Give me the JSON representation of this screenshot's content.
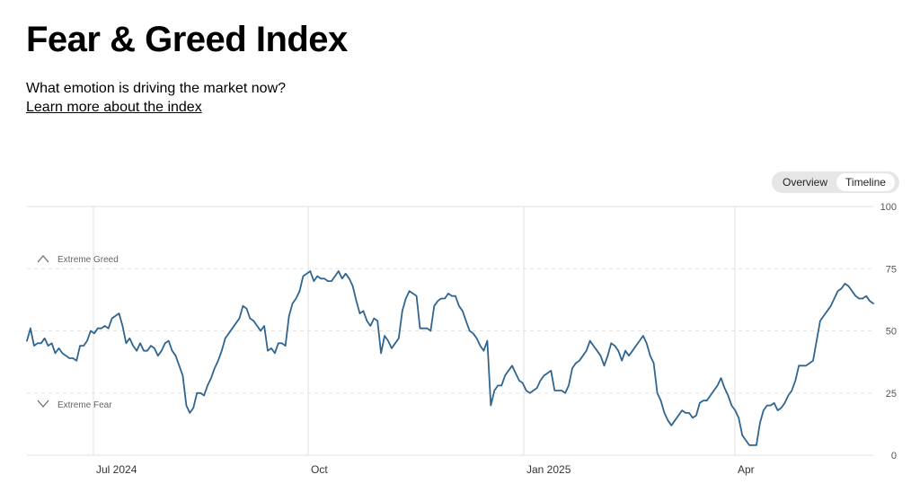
{
  "header": {
    "title": "Fear & Greed Index",
    "subtitle": "What emotion is driving the market now?",
    "learn_more": "Learn more about the index"
  },
  "toggle": {
    "overview": "Overview",
    "timeline": "Timeline",
    "selected": "Timeline"
  },
  "colors": {
    "line": "#2f6591",
    "grid": "#e0e0e0",
    "dash": "#e3e3e3"
  },
  "chart_data": {
    "type": "line",
    "y_ticks": [
      "100",
      "75",
      "50",
      "25",
      "0"
    ],
    "ylim": [
      0,
      100
    ],
    "x_ticks": [
      "Jul 2024",
      "Oct",
      "Jan 2025",
      "Apr"
    ],
    "zones": {
      "greed": {
        "label": "Extreme Greed",
        "icon": "chevron-up-icon"
      },
      "fear": {
        "label": "Extreme Fear",
        "icon": "chevron-down-icon"
      }
    },
    "grid": true,
    "series": [
      {
        "values": [
          46,
          51,
          44,
          45,
          45,
          47,
          44,
          45,
          41,
          43,
          41,
          40,
          39,
          39,
          38,
          44,
          44,
          46,
          50,
          49,
          51,
          51,
          52,
          51,
          55,
          56,
          57,
          52,
          45,
          47,
          44,
          42,
          45,
          42,
          42,
          44,
          43,
          40,
          42,
          45,
          46,
          42,
          40,
          36,
          32,
          20,
          17,
          19,
          25,
          25,
          24,
          28,
          31,
          35,
          38,
          42,
          47,
          49,
          51,
          53,
          55,
          60,
          59,
          55,
          54,
          52,
          50,
          52,
          42,
          43,
          41,
          45,
          45,
          44,
          56,
          61,
          63,
          66,
          72,
          73,
          74,
          70,
          72,
          71,
          71,
          70,
          70,
          72,
          74,
          71,
          73,
          71,
          68,
          62,
          57,
          58,
          54,
          52,
          55,
          54,
          41,
          48,
          46,
          43,
          45,
          47,
          58,
          63,
          66,
          65,
          64,
          51,
          51,
          51,
          50,
          60,
          62,
          63,
          63,
          65,
          64,
          64,
          60,
          58,
          54,
          50,
          49,
          47,
          44,
          42,
          46,
          20,
          26,
          28,
          28,
          32,
          34,
          36,
          33,
          30,
          29,
          26,
          25,
          26,
          27,
          30,
          32,
          33,
          34,
          26,
          26,
          26,
          25,
          28,
          35,
          37,
          38,
          40,
          42,
          46,
          44,
          42,
          40,
          36,
          40,
          45,
          44,
          42,
          38,
          42,
          40,
          42,
          44,
          46,
          48,
          45,
          40,
          37,
          25,
          22,
          17,
          14,
          12,
          14,
          16,
          18,
          17,
          17,
          15,
          16,
          21,
          22,
          22,
          24,
          26,
          28,
          31,
          27,
          24,
          20,
          18,
          15,
          8,
          6,
          4,
          4,
          4,
          13,
          18,
          20,
          20,
          21,
          18,
          19,
          21,
          24,
          26,
          30,
          36,
          36,
          36,
          37,
          38,
          46,
          54,
          56,
          58,
          60,
          63,
          66,
          67,
          69,
          68,
          66,
          64,
          63,
          63,
          64,
          62,
          61
        ]
      }
    ]
  }
}
